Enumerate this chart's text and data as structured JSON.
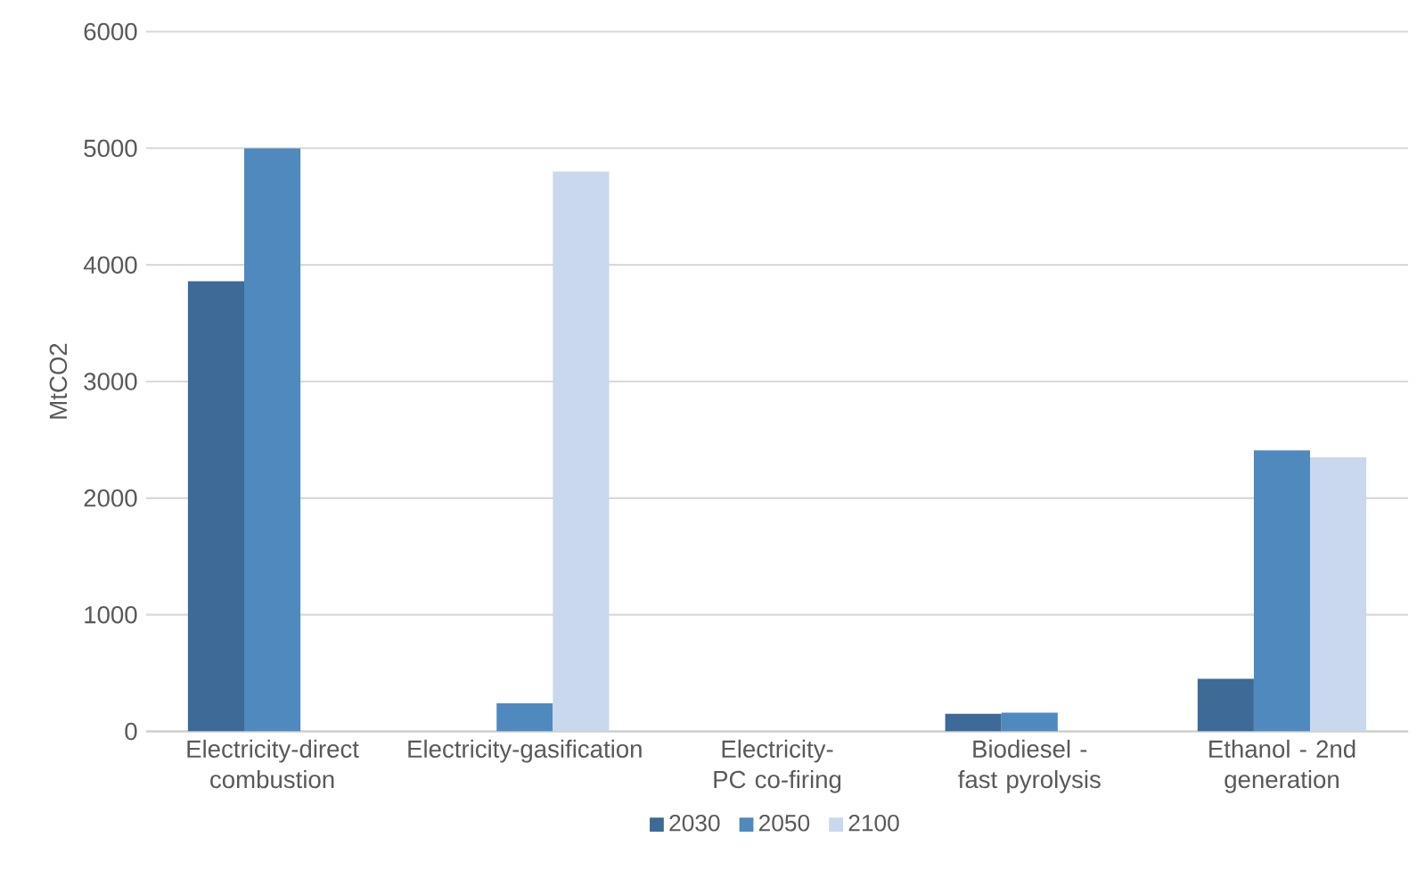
{
  "chart_data": {
    "type": "bar",
    "ylabel": "MtCO2",
    "categories": [
      "Electricity-direct combustion",
      "Electricity-gasification",
      "Electricity- PC co-firing",
      "Biodiesel - fast pyrolysis",
      "Ethanol - 2nd generation"
    ],
    "series": [
      {
        "name": "2030",
        "color": "#3d6a96",
        "values": [
          3860,
          0,
          0,
          150,
          450
        ]
      },
      {
        "name": "2050",
        "color": "#4f89bd",
        "values": [
          5000,
          240,
          0,
          160,
          2410
        ]
      },
      {
        "name": "2100",
        "color": "#c9d8ec",
        "values": [
          0,
          4800,
          0,
          0,
          2350
        ]
      }
    ],
    "ylim": [
      0,
      6000
    ],
    "yticks": [
      0,
      1000,
      2000,
      3000,
      4000,
      5000,
      6000
    ],
    "grid": "y",
    "legend": "bottom"
  }
}
